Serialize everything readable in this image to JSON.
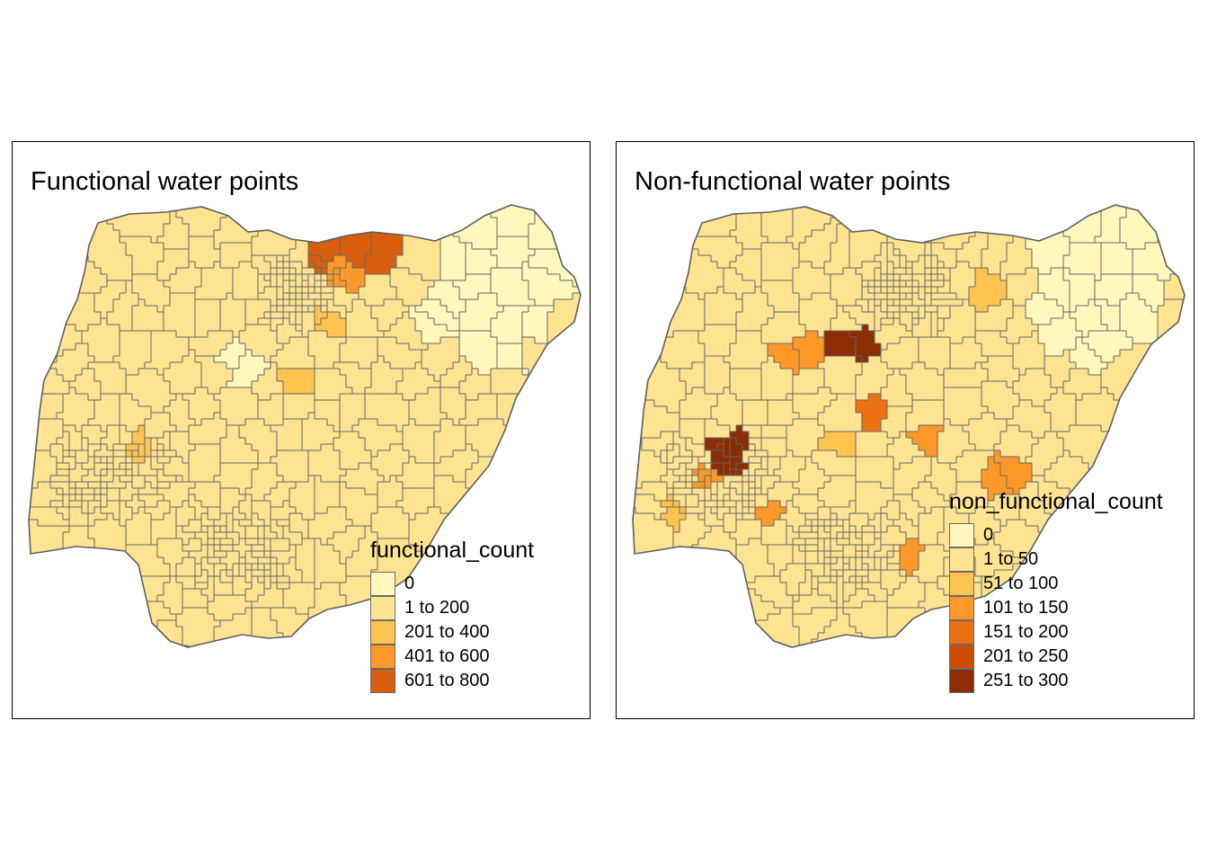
{
  "maps": [
    {
      "title": "Functional water points",
      "legend": {
        "title": "functional_count",
        "classes": [
          {
            "label": "0",
            "color": "#fff7bc"
          },
          {
            "label": "1 to 200",
            "color": "#fee391"
          },
          {
            "label": "201 to 400",
            "color": "#fec44f"
          },
          {
            "label": "401 to 600",
            "color": "#fe9929"
          },
          {
            "label": "601 to 800",
            "color": "#d95f0e"
          }
        ]
      }
    },
    {
      "title": "Non-functional water points",
      "legend": {
        "title": "non_functional_count",
        "classes": [
          {
            "label": "0",
            "color": "#fff7bc"
          },
          {
            "label": "1 to 50",
            "color": "#fee391"
          },
          {
            "label": "51 to 100",
            "color": "#fec44f"
          },
          {
            "label": "101 to 150",
            "color": "#fe9929"
          },
          {
            "label": "151 to 200",
            "color": "#ec7014"
          },
          {
            "label": "201 to 250",
            "color": "#cc4c02"
          },
          {
            "label": "251 to 300",
            "color": "#8c2d04"
          }
        ]
      }
    }
  ]
}
